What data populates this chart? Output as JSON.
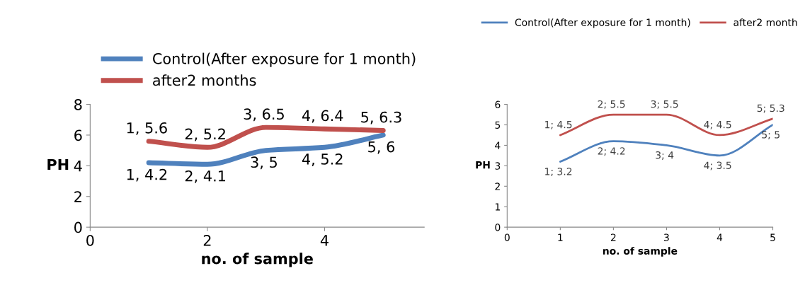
{
  "chart_data": [
    {
      "type": "line",
      "xlabel": "no. of sample",
      "ylabel": "PH",
      "x": [
        1,
        2,
        3,
        4,
        5
      ],
      "xlim": [
        0,
        5.7
      ],
      "xticks": [
        0,
        2,
        4
      ],
      "ylim": [
        0,
        8
      ],
      "yticks": [
        0,
        2,
        4,
        6,
        8
      ],
      "legend": "top left",
      "marker": "none",
      "line_style": "solid",
      "series": [
        {
          "name": "Control(After exposure for 1 month)",
          "color": "#4f81bd",
          "values": [
            4.2,
            4.1,
            5,
            5.2,
            6
          ],
          "value_labels": [
            "1, 4.2",
            "2, 4.1",
            "3, 5",
            "4, 5.2",
            "5, 6"
          ]
        },
        {
          "name": "after2 months",
          "color": "#c0504d",
          "values": [
            5.6,
            5.2,
            6.5,
            6.4,
            6.3
          ],
          "value_labels": [
            "1, 5.6",
            "2, 5.2",
            "3, 6.5",
            "4, 6.4",
            "5, 6.3"
          ]
        }
      ]
    },
    {
      "type": "line",
      "xlabel": "no. of sample",
      "ylabel": "PH",
      "x": [
        1,
        2,
        3,
        4,
        5
      ],
      "xlim": [
        0,
        5
      ],
      "xticks": [
        0,
        1,
        2,
        3,
        4,
        5
      ],
      "ylim": [
        0,
        6
      ],
      "yticks": [
        0,
        1,
        2,
        3,
        4,
        5,
        6
      ],
      "legend": "top",
      "marker": "none",
      "line_style": "solid",
      "series": [
        {
          "name": "Control(After exposure for 1 month)",
          "color": "#4f81bd",
          "values": [
            3.2,
            4.2,
            4,
            3.5,
            5
          ],
          "value_labels": [
            "1; 3.2",
            "2; 4.2",
            "3; 4",
            "4; 3.5",
            "5; 5"
          ]
        },
        {
          "name": "after2 month",
          "color": "#c0504d",
          "values": [
            4.5,
            5.5,
            5.5,
            4.5,
            5.3
          ],
          "value_labels": [
            "1; 4.5",
            "2; 5.5",
            "3; 5.5",
            "4; 4.5",
            "5; 5.3"
          ]
        }
      ]
    }
  ]
}
